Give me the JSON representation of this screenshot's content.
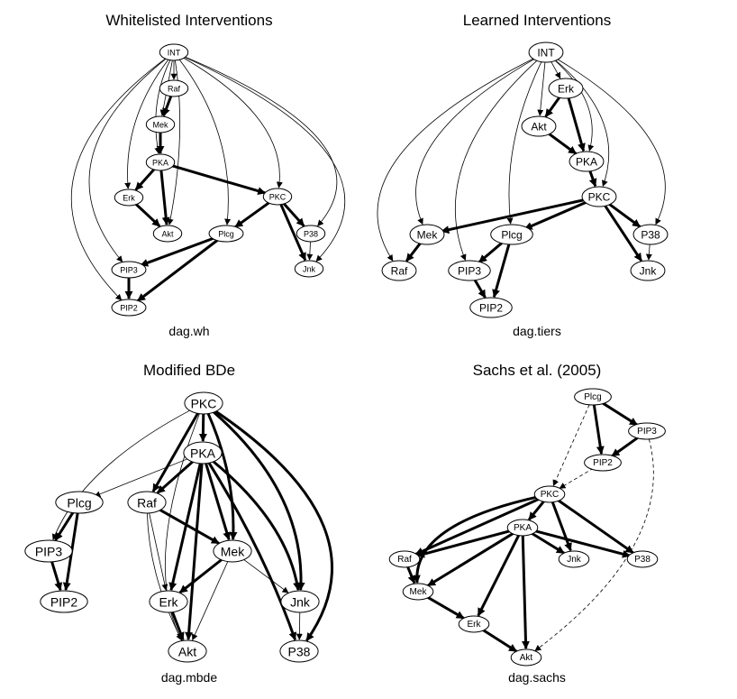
{
  "panels": [
    {
      "title": "Whitelisted Interventions",
      "caption": "dag.wh",
      "nodes": [
        "INT",
        "Raf",
        "Mek",
        "PKA",
        "Erk",
        "Akt",
        "PKC",
        "Plcg",
        "P38",
        "Jnk",
        "PIP3",
        "PIP2"
      ],
      "edges": [
        {
          "from": "INT",
          "to": "Raf",
          "style": "thin"
        },
        {
          "from": "INT",
          "to": "Mek",
          "style": "thin"
        },
        {
          "from": "INT",
          "to": "PKA",
          "style": "thin"
        },
        {
          "from": "INT",
          "to": "Erk",
          "style": "thin"
        },
        {
          "from": "INT",
          "to": "Akt",
          "style": "thin"
        },
        {
          "from": "INT",
          "to": "PKC",
          "style": "thin"
        },
        {
          "from": "INT",
          "to": "Plcg",
          "style": "thin"
        },
        {
          "from": "INT",
          "to": "P38",
          "style": "thin"
        },
        {
          "from": "INT",
          "to": "Jnk",
          "style": "thin"
        },
        {
          "from": "INT",
          "to": "PIP3",
          "style": "thin"
        },
        {
          "from": "INT",
          "to": "PIP2",
          "style": "thin"
        },
        {
          "from": "Raf",
          "to": "Mek",
          "style": "thick"
        },
        {
          "from": "Mek",
          "to": "PKA",
          "style": "thick"
        },
        {
          "from": "PKA",
          "to": "Erk",
          "style": "thick"
        },
        {
          "from": "PKA",
          "to": "Akt",
          "style": "thick"
        },
        {
          "from": "Erk",
          "to": "Akt",
          "style": "thick"
        },
        {
          "from": "PKA",
          "to": "PKC",
          "style": "thick"
        },
        {
          "from": "PKC",
          "to": "Plcg",
          "style": "thick"
        },
        {
          "from": "PKC",
          "to": "P38",
          "style": "thick"
        },
        {
          "from": "PKC",
          "to": "Jnk",
          "style": "thick"
        },
        {
          "from": "P38",
          "to": "Jnk",
          "style": "thin"
        },
        {
          "from": "Plcg",
          "to": "PIP3",
          "style": "thick"
        },
        {
          "from": "Plcg",
          "to": "PIP2",
          "style": "thick"
        },
        {
          "from": "PIP3",
          "to": "PIP2",
          "style": "thick"
        }
      ]
    },
    {
      "title": "Learned Interventions",
      "caption": "dag.tiers",
      "nodes": [
        "INT",
        "Erk",
        "Akt",
        "PKA",
        "PKC",
        "Mek",
        "Raf",
        "Plcg",
        "PIP3",
        "PIP2",
        "P38",
        "Jnk"
      ],
      "edges": [
        {
          "from": "INT",
          "to": "Erk",
          "style": "thin"
        },
        {
          "from": "INT",
          "to": "Akt",
          "style": "thin"
        },
        {
          "from": "INT",
          "to": "PKA",
          "style": "thin"
        },
        {
          "from": "INT",
          "to": "PKC",
          "style": "thin"
        },
        {
          "from": "INT",
          "to": "Mek",
          "style": "thin"
        },
        {
          "from": "INT",
          "to": "Raf",
          "style": "thin"
        },
        {
          "from": "INT",
          "to": "PIP3",
          "style": "thin"
        },
        {
          "from": "INT",
          "to": "Plcg",
          "style": "thin"
        },
        {
          "from": "INT",
          "to": "P38",
          "style": "thin"
        },
        {
          "from": "Erk",
          "to": "Akt",
          "style": "thick"
        },
        {
          "from": "Erk",
          "to": "PKA",
          "style": "thick"
        },
        {
          "from": "Akt",
          "to": "PKA",
          "style": "thick"
        },
        {
          "from": "PKA",
          "to": "PKC",
          "style": "thick"
        },
        {
          "from": "PKC",
          "to": "Mek",
          "style": "thick"
        },
        {
          "from": "PKC",
          "to": "Plcg",
          "style": "thick"
        },
        {
          "from": "PKC",
          "to": "P38",
          "style": "thick"
        },
        {
          "from": "PKC",
          "to": "Jnk",
          "style": "thick"
        },
        {
          "from": "Mek",
          "to": "Raf",
          "style": "thick"
        },
        {
          "from": "Plcg",
          "to": "PIP3",
          "style": "thick"
        },
        {
          "from": "Plcg",
          "to": "PIP2",
          "style": "thick"
        },
        {
          "from": "PIP3",
          "to": "PIP2",
          "style": "thick"
        },
        {
          "from": "P38",
          "to": "Jnk",
          "style": "thin"
        }
      ]
    },
    {
      "title": "Modified BDe",
      "caption": "dag.mbde",
      "nodes": [
        "PKC",
        "PKA",
        "Plcg",
        "Raf",
        "PIP3",
        "Mek",
        "PIP2",
        "Erk",
        "Jnk",
        "Akt",
        "P38"
      ],
      "edges": [
        {
          "from": "PKC",
          "to": "PKA",
          "style": "thick"
        },
        {
          "from": "PKC",
          "to": "Raf",
          "style": "thick"
        },
        {
          "from": "PKC",
          "to": "Mek",
          "style": "thick"
        },
        {
          "from": "PKC",
          "to": "Jnk",
          "style": "thick"
        },
        {
          "from": "PKC",
          "to": "P38",
          "style": "thick"
        },
        {
          "from": "PKC",
          "to": "PIP3",
          "style": "thin"
        },
        {
          "from": "PKC",
          "to": "Akt",
          "style": "thin"
        },
        {
          "from": "PKA",
          "to": "Raf",
          "style": "thick"
        },
        {
          "from": "PKA",
          "to": "Mek",
          "style": "thick"
        },
        {
          "from": "PKA",
          "to": "Erk",
          "style": "thick"
        },
        {
          "from": "PKA",
          "to": "Akt",
          "style": "thick"
        },
        {
          "from": "PKA",
          "to": "Jnk",
          "style": "thick"
        },
        {
          "from": "PKA",
          "to": "P38",
          "style": "thick"
        },
        {
          "from": "PKA",
          "to": "Plcg",
          "style": "thin"
        },
        {
          "from": "Plcg",
          "to": "PIP3",
          "style": "thick"
        },
        {
          "from": "Plcg",
          "to": "PIP2",
          "style": "thick"
        },
        {
          "from": "PIP3",
          "to": "PIP2",
          "style": "thick"
        },
        {
          "from": "Raf",
          "to": "Mek",
          "style": "thick"
        },
        {
          "from": "Raf",
          "to": "Erk",
          "style": "thin"
        },
        {
          "from": "Raf",
          "to": "Akt",
          "style": "thin"
        },
        {
          "from": "Mek",
          "to": "Erk",
          "style": "thick"
        },
        {
          "from": "Mek",
          "to": "Akt",
          "style": "thin"
        },
        {
          "from": "Mek",
          "to": "Jnk",
          "style": "thin"
        },
        {
          "from": "Erk",
          "to": "Akt",
          "style": "thick"
        },
        {
          "from": "Jnk",
          "to": "P38",
          "style": "thin"
        }
      ]
    },
    {
      "title": "Sachs et al. (2005)",
      "caption": "dag.sachs",
      "nodes": [
        "Plcg",
        "PIP3",
        "PIP2",
        "PKC",
        "PKA",
        "Raf",
        "Jnk",
        "P38",
        "Mek",
        "Erk",
        "Akt"
      ],
      "edges": [
        {
          "from": "Plcg",
          "to": "PIP3",
          "style": "thick"
        },
        {
          "from": "Plcg",
          "to": "PIP2",
          "style": "thick"
        },
        {
          "from": "PIP3",
          "to": "PIP2",
          "style": "thick"
        },
        {
          "from": "Plcg",
          "to": "PKC",
          "style": "dashed"
        },
        {
          "from": "PIP2",
          "to": "PKC",
          "style": "dashed"
        },
        {
          "from": "PIP3",
          "to": "Akt",
          "style": "dashed"
        },
        {
          "from": "PKC",
          "to": "PKA",
          "style": "thick"
        },
        {
          "from": "PKC",
          "to": "Raf",
          "style": "thick"
        },
        {
          "from": "PKC",
          "to": "Mek",
          "style": "thick"
        },
        {
          "from": "PKC",
          "to": "Jnk",
          "style": "thick"
        },
        {
          "from": "PKC",
          "to": "P38",
          "style": "thick"
        },
        {
          "from": "PKA",
          "to": "Raf",
          "style": "thick"
        },
        {
          "from": "PKA",
          "to": "Mek",
          "style": "thick"
        },
        {
          "from": "PKA",
          "to": "Erk",
          "style": "thick"
        },
        {
          "from": "PKA",
          "to": "Akt",
          "style": "thick"
        },
        {
          "from": "PKA",
          "to": "Jnk",
          "style": "thick"
        },
        {
          "from": "PKA",
          "to": "P38",
          "style": "thick"
        },
        {
          "from": "Raf",
          "to": "Mek",
          "style": "thick"
        },
        {
          "from": "Mek",
          "to": "Erk",
          "style": "thick"
        },
        {
          "from": "Erk",
          "to": "Akt",
          "style": "thick"
        }
      ]
    }
  ]
}
